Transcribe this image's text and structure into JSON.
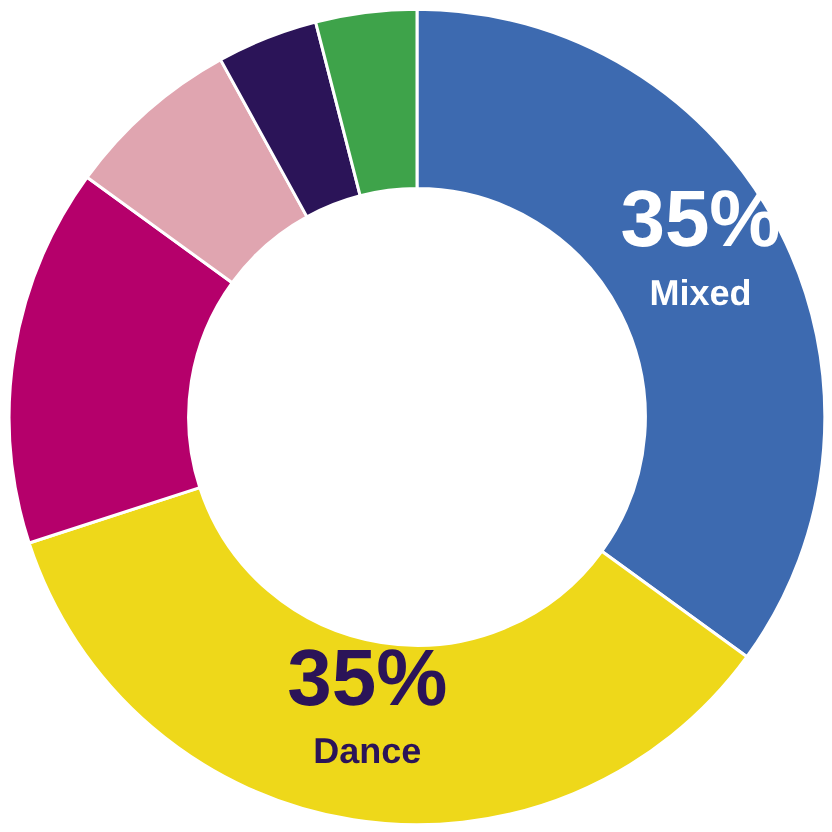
{
  "chart_data": {
    "type": "donut",
    "categories": [
      "Mixed",
      "Dance",
      null,
      null,
      null,
      null
    ],
    "values": [
      35,
      35,
      15,
      7,
      4,
      4
    ],
    "colors": [
      "#3d6ab0",
      "#eed81a",
      "#b5006b",
      "#e0a5b0",
      "#2b1458",
      "#3ea34a"
    ],
    "value_labels": [
      "35%",
      "35%",
      null,
      null,
      null,
      null
    ]
  }
}
